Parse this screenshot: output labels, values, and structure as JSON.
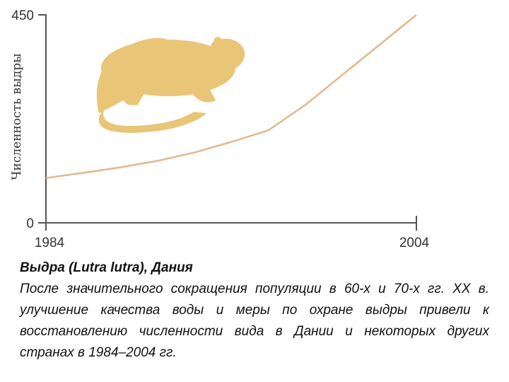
{
  "chart_data": {
    "type": "line",
    "title": "",
    "ylabel": "Численность выдры",
    "xlabel": "",
    "xlim": [
      1984,
      2004
    ],
    "ylim": [
      0,
      450
    ],
    "x_ticks": [
      "1984",
      "2004"
    ],
    "y_ticks": [
      "0",
      "450"
    ],
    "grid": false,
    "series": [
      {
        "x": [
          1984,
          1986,
          1988,
          1990,
          1992,
          1994,
          1996,
          1998,
          2000,
          2002,
          2004
        ],
        "values": [
          97,
          108,
          120,
          134,
          152,
          175,
          200,
          255,
          320,
          385,
          450
        ]
      }
    ],
    "line_color": "#e2b98f",
    "illustration": "otter-silhouette",
    "illustration_color": "#e8c577"
  },
  "caption": {
    "title": "Выдра (Lutra lutra), Дания",
    "body": "После значительного сокращения популяции в 60-х и 70-х гг. XX в. улучшение качества воды и меры по охране выдры привели к восстановлению численности вида в Дании и некоторых других странах в 1984–2004 гг."
  }
}
